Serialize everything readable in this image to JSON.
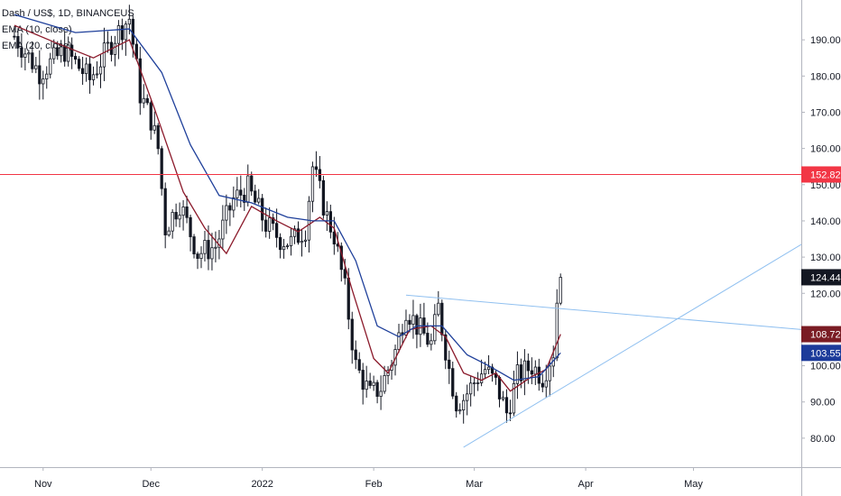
{
  "legend": {
    "symbol": "Dash / US$, 1D, BINANCEUS",
    "ema1": "EMA (10, close)",
    "ema2": "EMA (20, close)"
  },
  "colors": {
    "ema10": "#8b1a2b",
    "ema20": "#1e3f9a",
    "resistance": "#f23645",
    "trendline": "#90c0f0",
    "badge_last": "#131722",
    "badge_ema10": "#7a1c24",
    "badge_ema20": "#1c3b9a",
    "badge_level": "#f23645"
  },
  "chart_data": {
    "type": "candlestick",
    "x_axis": {
      "labels": [
        "Nov",
        "Dec",
        "2022",
        "Feb",
        "Mar",
        "Apr",
        "May"
      ],
      "label_dates": [
        "2021-11-01",
        "2021-12-01",
        "2022-01-01",
        "2022-02-01",
        "2022-03-01",
        "2022-04-01",
        "2022-05-01"
      ],
      "range": [
        "2021-10-20",
        "2022-05-31"
      ]
    },
    "y_axis": {
      "ticks": [
        "80.00",
        "90.00",
        "100.00",
        "110.00",
        "120.00",
        "130.00",
        "140.00",
        "150.00",
        "160.00",
        "170.00",
        "180.00",
        "190.00"
      ],
      "range": [
        72,
        201
      ]
    },
    "price_series": [
      [
        "2021-10-24",
        191
      ],
      [
        "2021-10-31",
        181
      ],
      [
        "2021-11-07",
        187
      ],
      [
        "2021-11-14",
        179
      ],
      [
        "2021-11-21",
        191
      ],
      [
        "2021-11-25",
        196
      ],
      [
        "2021-11-28",
        175
      ],
      [
        "2021-12-01",
        168
      ],
      [
        "2021-12-03",
        160
      ],
      [
        "2021-12-05",
        138
      ],
      [
        "2021-12-09",
        145
      ],
      [
        "2021-12-14",
        131
      ],
      [
        "2021-12-19",
        133
      ],
      [
        "2021-12-24",
        146
      ],
      [
        "2021-12-28",
        149
      ],
      [
        "2022-01-02",
        139
      ],
      [
        "2022-01-06",
        135
      ],
      [
        "2022-01-09",
        134
      ],
      [
        "2022-01-13",
        138
      ],
      [
        "2022-01-15",
        155
      ],
      [
        "2022-01-19",
        141
      ],
      [
        "2022-01-21",
        136
      ],
      [
        "2022-01-24",
        121
      ],
      [
        "2022-01-27",
        100
      ],
      [
        "2022-01-31",
        92
      ],
      [
        "2022-02-03",
        94
      ],
      [
        "2022-02-07",
        104
      ],
      [
        "2022-02-10",
        116
      ],
      [
        "2022-02-13",
        111
      ],
      [
        "2022-02-17",
        106
      ],
      [
        "2022-02-19",
        116
      ],
      [
        "2022-02-22",
        99
      ],
      [
        "2022-02-24",
        90
      ],
      [
        "2022-02-26",
        91
      ],
      [
        "2022-03-02",
        97
      ],
      [
        "2022-03-04",
        99
      ],
      [
        "2022-03-07",
        95
      ],
      [
        "2022-03-10",
        87
      ],
      [
        "2022-03-13",
        97
      ],
      [
        "2022-03-17",
        100
      ],
      [
        "2022-03-20",
        97
      ],
      [
        "2022-03-23",
        104
      ],
      [
        "2022-03-24",
        118
      ],
      [
        "2022-03-25",
        124.44
      ]
    ],
    "series": [
      {
        "name": "EMA (10, close)",
        "last": 108.72,
        "values": [
          [
            "2021-10-24",
            194
          ],
          [
            "2021-11-05",
            189
          ],
          [
            "2021-11-15",
            185
          ],
          [
            "2021-11-25",
            190
          ],
          [
            "2021-12-02",
            171
          ],
          [
            "2021-12-10",
            148
          ],
          [
            "2021-12-16",
            138
          ],
          [
            "2021-12-22",
            131
          ],
          [
            "2021-12-29",
            144
          ],
          [
            "2022-01-05",
            140
          ],
          [
            "2022-01-11",
            137
          ],
          [
            "2022-01-17",
            141
          ],
          [
            "2022-01-21",
            138
          ],
          [
            "2022-01-26",
            121
          ],
          [
            "2022-02-01",
            102
          ],
          [
            "2022-02-05",
            98
          ],
          [
            "2022-02-11",
            110
          ],
          [
            "2022-02-17",
            111
          ],
          [
            "2022-02-21",
            108
          ],
          [
            "2022-02-26",
            98
          ],
          [
            "2022-03-03",
            96
          ],
          [
            "2022-03-07",
            98
          ],
          [
            "2022-03-11",
            93
          ],
          [
            "2022-03-17",
            97
          ],
          [
            "2022-03-21",
            99
          ],
          [
            "2022-03-25",
            108.72
          ]
        ]
      },
      {
        "name": "EMA (20, close)",
        "last": 103.55,
        "values": [
          [
            "2021-10-24",
            197
          ],
          [
            "2021-11-10",
            192
          ],
          [
            "2021-11-25",
            193
          ],
          [
            "2021-12-04",
            181
          ],
          [
            "2021-12-12",
            161
          ],
          [
            "2021-12-20",
            147
          ],
          [
            "2021-12-29",
            145
          ],
          [
            "2022-01-08",
            141
          ],
          [
            "2022-01-15",
            140
          ],
          [
            "2022-01-21",
            140
          ],
          [
            "2022-01-27",
            129
          ],
          [
            "2022-02-02",
            111
          ],
          [
            "2022-02-08",
            108
          ],
          [
            "2022-02-13",
            111
          ],
          [
            "2022-02-20",
            111
          ],
          [
            "2022-02-27",
            103
          ],
          [
            "2022-03-05",
            100
          ],
          [
            "2022-03-12",
            96
          ],
          [
            "2022-03-19",
            97
          ],
          [
            "2022-03-25",
            103.55
          ]
        ]
      }
    ],
    "horizontal_lines": [
      {
        "value": 152.82,
        "label": "152.82"
      }
    ],
    "trendlines": [
      {
        "start": [
          "2022-02-10",
          119.5
        ],
        "end": [
          "2022-05-31",
          110
        ]
      },
      {
        "start": [
          "2022-02-26",
          77.5
        ],
        "end": [
          "2022-05-31",
          133.5
        ]
      }
    ],
    "price_labels": [
      {
        "value": 152.82,
        "label": "152.82",
        "kind": "level"
      },
      {
        "value": 124.44,
        "label": "124.44",
        "kind": "last"
      },
      {
        "value": 108.72,
        "label": "108.72",
        "kind": "ema10"
      },
      {
        "value": 103.55,
        "label": "103.55",
        "kind": "ema20"
      }
    ]
  }
}
